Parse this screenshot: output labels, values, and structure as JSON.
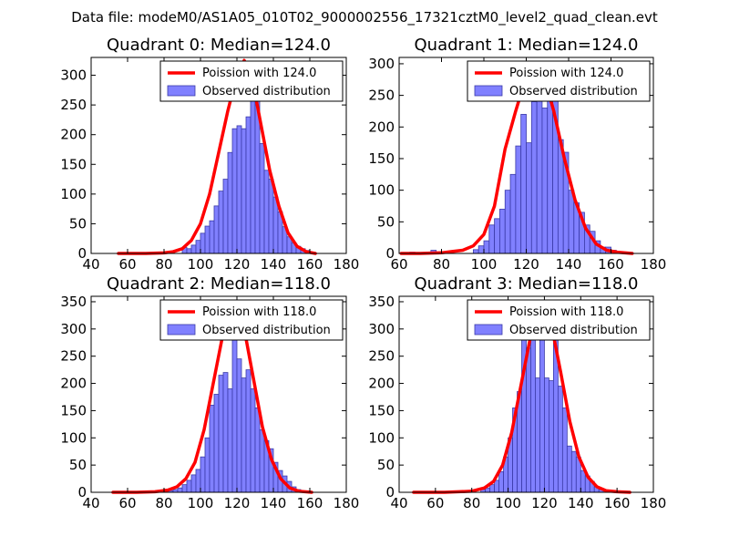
{
  "figure": {
    "suptitle": "Data file: modeM0/AS1A05_010T02_9000002556_17321cztM0_level2_quad_clean.evt"
  },
  "colors": {
    "bar_fill": "#8080ff",
    "bar_edge": "#3a3aa8",
    "poisson_line": "#ff0000",
    "axis": "#000000"
  },
  "chart_data": [
    {
      "type": "bar",
      "title": "Quadrant 0: Median=124.0",
      "legend": {
        "line": "Poission with 124.0",
        "bars": "Observed distribution",
        "placement": "top-right"
      },
      "xlim": [
        40,
        180
      ],
      "xticks": [
        40,
        60,
        80,
        100,
        120,
        140,
        160,
        180
      ],
      "ylim": [
        0,
        330
      ],
      "yticks": [
        0,
        50,
        100,
        150,
        200,
        250,
        300
      ],
      "bin_width": 2.5,
      "hist": {
        "x": [
          90,
          92.5,
          95,
          97.5,
          100,
          102.5,
          105,
          107.5,
          110,
          112.5,
          115,
          117.5,
          120,
          122.5,
          125,
          127.5,
          130,
          132.5,
          135,
          137.5,
          140,
          142.5,
          145,
          147.5,
          150,
          152.5,
          155,
          157.5
        ],
        "y": [
          10,
          8,
          14,
          22,
          34,
          46,
          55,
          80,
          105,
          125,
          170,
          210,
          215,
          210,
          230,
          320,
          275,
          185,
          140,
          125,
          95,
          70,
          45,
          28,
          18,
          12,
          8,
          5
        ]
      },
      "poisson": {
        "x": [
          55,
          70,
          80,
          85,
          90,
          95,
          100,
          105,
          110,
          115,
          120,
          124,
          128,
          133,
          138,
          143,
          148,
          153,
          158,
          163
        ],
        "y": [
          0,
          0,
          1,
          3,
          8,
          22,
          50,
          100,
          170,
          240,
          300,
          325,
          300,
          220,
          140,
          80,
          35,
          12,
          3,
          0
        ]
      }
    },
    {
      "type": "bar",
      "title": "Quadrant 1: Median=124.0",
      "legend": {
        "line": "Poission with 124.0",
        "bars": "Observed distribution",
        "placement": "top-right"
      },
      "xlim": [
        60,
        180
      ],
      "xticks": [
        60,
        80,
        100,
        120,
        140,
        160,
        180
      ],
      "ylim": [
        0,
        310
      ],
      "yticks": [
        0,
        50,
        100,
        150,
        200,
        250,
        300
      ],
      "bin_width": 2.5,
      "hist": {
        "x": [
          65,
          75,
          95,
          97.5,
          100,
          102.5,
          105,
          107.5,
          110,
          112.5,
          115,
          117.5,
          120,
          122.5,
          125,
          127.5,
          130,
          132.5,
          135,
          137.5,
          140,
          142.5,
          145,
          147.5,
          150,
          152.5,
          155,
          157.5,
          160
        ],
        "y": [
          2,
          5,
          6,
          12,
          20,
          45,
          55,
          70,
          100,
          125,
          170,
          220,
          175,
          240,
          265,
          230,
          285,
          265,
          180,
          160,
          100,
          80,
          65,
          45,
          35,
          20,
          10,
          10,
          5
        ]
      },
      "poisson": {
        "x": [
          61,
          70,
          80,
          85,
          90,
          95,
          100,
          105,
          110,
          115,
          120,
          124,
          128,
          133,
          138,
          143,
          148,
          153,
          158,
          163,
          170
        ],
        "y": [
          0,
          0,
          1,
          3,
          5,
          12,
          30,
          75,
          165,
          225,
          280,
          300,
          285,
          225,
          150,
          85,
          40,
          15,
          5,
          2,
          0
        ]
      }
    },
    {
      "type": "bar",
      "title": "Quadrant 2: Median=118.0",
      "legend": {
        "line": "Poission with 118.0",
        "bars": "Observed distribution",
        "placement": "top-right"
      },
      "xlim": [
        40,
        180
      ],
      "xticks": [
        40,
        60,
        80,
        100,
        120,
        140,
        160,
        180
      ],
      "ylim": [
        0,
        360
      ],
      "yticks": [
        0,
        50,
        100,
        150,
        200,
        250,
        300,
        350
      ],
      "bin_width": 2.5,
      "hist": {
        "x": [
          82.5,
          85,
          87.5,
          90,
          92.5,
          95,
          97.5,
          100,
          102.5,
          105,
          107.5,
          110,
          112.5,
          115,
          117.5,
          120,
          122.5,
          125,
          127.5,
          130,
          132.5,
          135,
          137.5,
          140,
          142.5,
          145,
          147.5,
          150,
          152.5
        ],
        "y": [
          3,
          5,
          8,
          14,
          22,
          32,
          42,
          65,
          100,
          160,
          180,
          215,
          220,
          190,
          325,
          245,
          210,
          225,
          190,
          155,
          115,
          95,
          80,
          55,
          40,
          30,
          20,
          10,
          5
        ]
      },
      "poisson": {
        "x": [
          52,
          65,
          75,
          82,
          87,
          92,
          97,
          102,
          107,
          112,
          118,
          124,
          129,
          134,
          139,
          144,
          149,
          154,
          161
        ],
        "y": [
          0,
          0,
          1,
          4,
          10,
          25,
          55,
          115,
          200,
          285,
          340,
          300,
          210,
          120,
          60,
          25,
          8,
          2,
          0
        ]
      }
    },
    {
      "type": "bar",
      "title": "Quadrant 3: Median=118.0",
      "legend": {
        "line": "Poission with 118.0",
        "bars": "Observed distribution",
        "placement": "top-right"
      },
      "xlim": [
        40,
        180
      ],
      "xticks": [
        40,
        60,
        80,
        100,
        120,
        140,
        160,
        180
      ],
      "ylim": [
        0,
        360
      ],
      "yticks": [
        0,
        50,
        100,
        150,
        200,
        250,
        300,
        350
      ],
      "bin_width": 2.5,
      "hist": {
        "x": [
          85,
          87.5,
          90,
          92.5,
          95,
          97.5,
          100,
          102.5,
          105,
          107.5,
          110,
          112.5,
          115,
          117.5,
          120,
          122.5,
          125,
          127.5,
          130,
          132.5,
          135,
          137.5,
          140,
          142.5,
          145,
          147.5,
          150
        ],
        "y": [
          5,
          8,
          14,
          22,
          38,
          65,
          100,
          155,
          185,
          305,
          265,
          295,
          210,
          345,
          210,
          205,
          290,
          195,
          155,
          85,
          75,
          65,
          40,
          30,
          20,
          10,
          5
        ]
      },
      "poisson": {
        "x": [
          48,
          65,
          80,
          87,
          92,
          97,
          102,
          107,
          112,
          118,
          124,
          129,
          134,
          139,
          144,
          149,
          154,
          160,
          167
        ],
        "y": [
          0,
          0,
          2,
          8,
          20,
          50,
          110,
          195,
          280,
          340,
          305,
          220,
          130,
          65,
          28,
          10,
          3,
          1,
          0
        ]
      }
    }
  ]
}
